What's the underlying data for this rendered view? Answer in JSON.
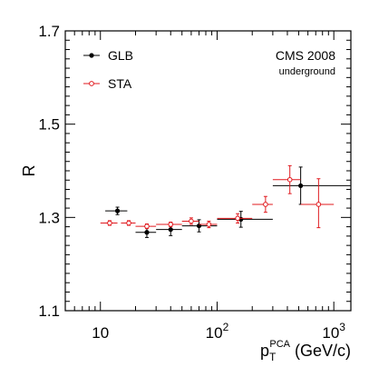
{
  "chart_data": {
    "type": "scatter",
    "xscale": "log",
    "xlim": [
      5,
      1400
    ],
    "ylim": [
      1.1,
      1.7
    ],
    "ylabel": "R",
    "xlabel_main": "p",
    "xlabel_sub": "T",
    "xlabel_sup": "PCA",
    "xlabel_unit": "(GeV/c)",
    "x_tick_labels": [
      {
        "value": 10,
        "base": "10",
        "exp": ""
      },
      {
        "value": 100,
        "base": "10",
        "exp": "2"
      },
      {
        "value": 1000,
        "base": "10",
        "exp": "3"
      }
    ],
    "y_tick_labels": [
      {
        "value": 1.1,
        "label": "1.1"
      },
      {
        "value": 1.3,
        "label": "1.3"
      },
      {
        "value": 1.5,
        "label": "1.5"
      },
      {
        "value": 1.7,
        "label": "1.7"
      }
    ],
    "annotations": [
      "CMS 2008",
      "underground"
    ],
    "legend_position": "top-left",
    "series": [
      {
        "name": "GLB",
        "color": "#000000",
        "marker": "filled-circle",
        "points": [
          {
            "x": 14,
            "y": 1.314,
            "xlo": 11,
            "xhi": 17,
            "ylo": 1.306,
            "yhi": 1.322
          },
          {
            "x": 25,
            "y": 1.268,
            "xlo": 20,
            "xhi": 30,
            "ylo": 1.257,
            "yhi": 1.279
          },
          {
            "x": 40,
            "y": 1.274,
            "xlo": 30,
            "xhi": 50,
            "ylo": 1.261,
            "yhi": 1.287
          },
          {
            "x": 70,
            "y": 1.282,
            "xlo": 50,
            "xhi": 100,
            "ylo": 1.269,
            "yhi": 1.295
          },
          {
            "x": 160,
            "y": 1.296,
            "xlo": 100,
            "xhi": 300,
            "ylo": 1.279,
            "yhi": 1.313
          },
          {
            "x": 520,
            "y": 1.368,
            "xlo": 300,
            "xhi": 1400,
            "ylo": 1.328,
            "yhi": 1.408
          }
        ]
      },
      {
        "name": "STA",
        "color": "#e0191e",
        "marker": "open-circle",
        "points": [
          {
            "x": 12,
            "y": 1.288,
            "xlo": 10,
            "xhi": 14,
            "ylo": 1.283,
            "yhi": 1.293
          },
          {
            "x": 17.5,
            "y": 1.288,
            "xlo": 15,
            "xhi": 20,
            "ylo": 1.283,
            "yhi": 1.293
          },
          {
            "x": 25,
            "y": 1.281,
            "xlo": 20,
            "xhi": 30,
            "ylo": 1.276,
            "yhi": 1.286
          },
          {
            "x": 40,
            "y": 1.285,
            "xlo": 30,
            "xhi": 50,
            "ylo": 1.28,
            "yhi": 1.29
          },
          {
            "x": 60,
            "y": 1.292,
            "xlo": 50,
            "xhi": 70,
            "ylo": 1.285,
            "yhi": 1.299
          },
          {
            "x": 85,
            "y": 1.285,
            "xlo": 70,
            "xhi": 100,
            "ylo": 1.278,
            "yhi": 1.292
          },
          {
            "x": 150,
            "y": 1.298,
            "xlo": 100,
            "xhi": 200,
            "ylo": 1.288,
            "yhi": 1.308
          },
          {
            "x": 260,
            "y": 1.328,
            "xlo": 200,
            "xhi": 300,
            "ylo": 1.311,
            "yhi": 1.345
          },
          {
            "x": 420,
            "y": 1.381,
            "xlo": 300,
            "xhi": 520,
            "ylo": 1.351,
            "yhi": 1.411
          },
          {
            "x": 740,
            "y": 1.328,
            "xlo": 520,
            "xhi": 1000,
            "ylo": 1.278,
            "yhi": 1.383
          }
        ]
      }
    ]
  }
}
